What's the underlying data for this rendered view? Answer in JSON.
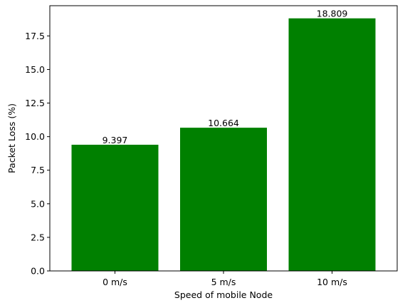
{
  "chart_data": {
    "type": "bar",
    "categories": [
      "0 m/s",
      "5 m/s",
      "10 m/s"
    ],
    "values": [
      9.397,
      10.664,
      18.809
    ],
    "data_labels": [
      "9.397",
      "10.664",
      "18.809"
    ],
    "title": "",
    "xlabel": "Speed of mobile Node",
    "ylabel": "Packet Loss (%)",
    "ylim": [
      0,
      19.75
    ],
    "yticks": [
      0.0,
      2.5,
      5.0,
      7.5,
      10.0,
      12.5,
      15.0,
      17.5
    ],
    "ytick_labels": [
      "0.0",
      "2.5",
      "5.0",
      "7.5",
      "10.0",
      "12.5",
      "15.0",
      "17.5"
    ],
    "bar_color": "#008000",
    "grid": false,
    "legend": "none"
  }
}
